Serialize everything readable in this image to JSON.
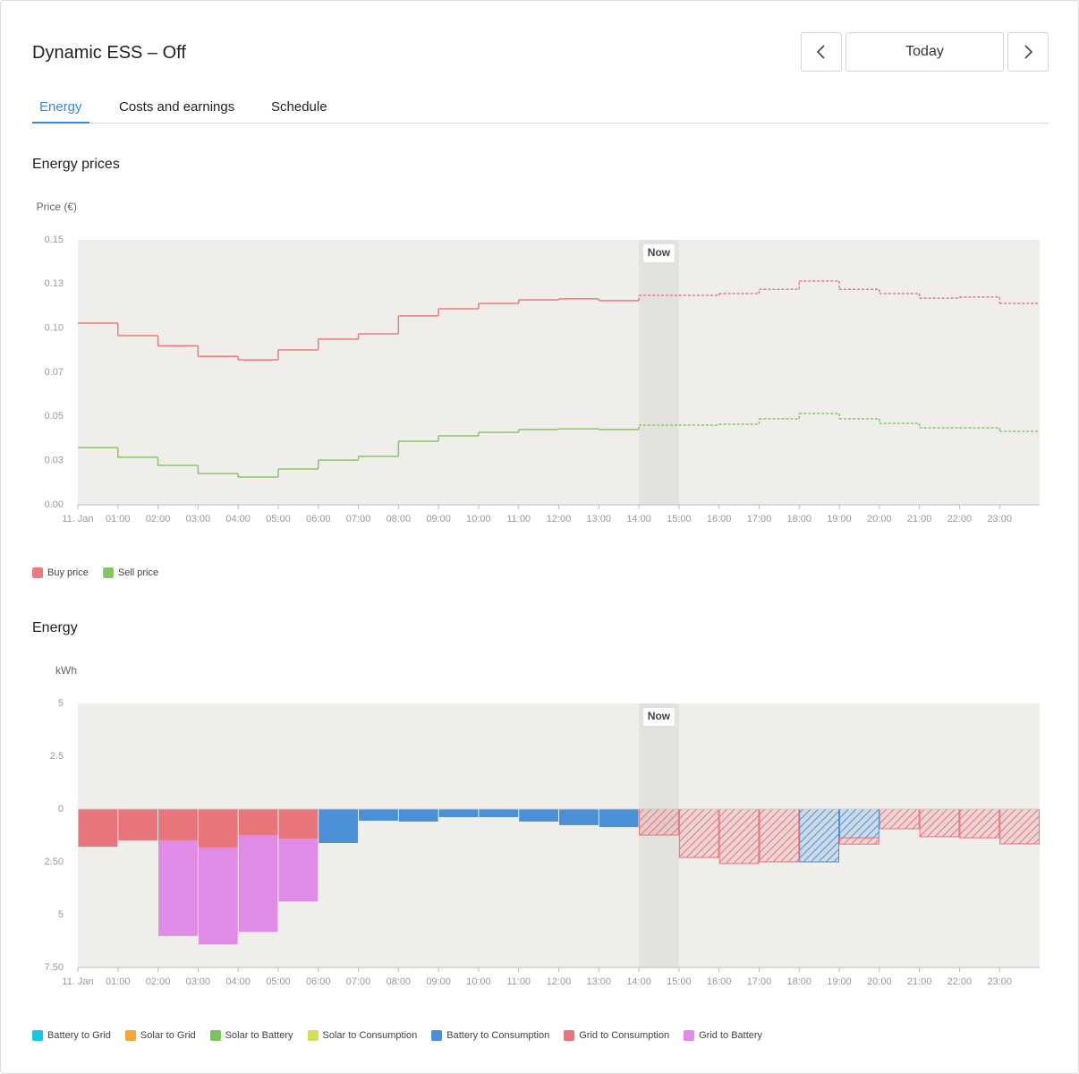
{
  "header": {
    "title": "Dynamic ESS – Off",
    "date_button": "Today"
  },
  "tabs": [
    "Energy",
    "Costs and earnings",
    "Schedule"
  ],
  "chart_data": [
    {
      "type": "line",
      "step": true,
      "title": "Energy prices",
      "y_label": "Price (€)",
      "categories": [
        "11. Jan",
        "01:00",
        "02:00",
        "03:00",
        "04:00",
        "05:00",
        "06:00",
        "07:00",
        "08:00",
        "09:00",
        "10:00",
        "11:00",
        "12:00",
        "13:00",
        "14:00",
        "15:00",
        "16:00",
        "17:00",
        "18:00",
        "19:00",
        "20:00",
        "21:00",
        "22:00",
        "23:00"
      ],
      "ylim": [
        0,
        0.15
      ],
      "yticks": [
        {
          "value": 0,
          "label": "0.00"
        },
        {
          "value": 0.025,
          "label": "0.03"
        },
        0.05,
        {
          "value": 0.075,
          "label": "0.07"
        },
        {
          "value": 0.1,
          "label": "0.10"
        },
        {
          "value": 0.125,
          "label": "0.13"
        },
        0.15
      ],
      "now": {
        "label": "Now",
        "index": 14
      },
      "series": [
        {
          "name": "Buy price",
          "color": "#ee7a7f",
          "values": [
            0.1029,
            0.0958,
            0.09,
            0.084,
            0.082,
            0.0877,
            0.0938,
            0.0968,
            0.107,
            0.111,
            0.114,
            0.116,
            0.1166,
            0.1156,
            0.1186,
            0.1186,
            0.1196,
            0.122,
            0.1267,
            0.122,
            0.1196,
            0.117,
            0.1176,
            0.114
          ]
        },
        {
          "name": "Sell price",
          "color": "#86c764",
          "values": [
            0.0324,
            0.0269,
            0.0223,
            0.0177,
            0.0157,
            0.0203,
            0.0253,
            0.0274,
            0.036,
            0.039,
            0.041,
            0.0426,
            0.043,
            0.0426,
            0.0451,
            0.0451,
            0.0456,
            0.0487,
            0.0517,
            0.0487,
            0.0461,
            0.0436,
            0.0436,
            0.0416
          ]
        }
      ]
    },
    {
      "type": "bar",
      "stacked": true,
      "title": "Energy",
      "y_label": "kWh",
      "categories": [
        "11. Jan",
        "01:00",
        "02:00",
        "03:00",
        "04:00",
        "05:00",
        "06:00",
        "07:00",
        "08:00",
        "09:00",
        "10:00",
        "11:00",
        "12:00",
        "13:00",
        "14:00",
        "15:00",
        "16:00",
        "17:00",
        "18:00",
        "19:00",
        "20:00",
        "21:00",
        "22:00",
        "23:00"
      ],
      "ylim": [
        -7.5,
        5
      ],
      "yticks": [
        {
          "value": -7.5,
          "label": "7.50"
        },
        {
          "value": -5,
          "label": "5"
        },
        {
          "value": -2.5,
          "label": "2.50"
        },
        0,
        2.5,
        5
      ],
      "now": {
        "label": "Now",
        "index": 14
      },
      "series": [
        {
          "name": "Battery to Grid",
          "color": "#1cc6e0",
          "values": [
            0,
            0,
            0,
            0,
            0,
            0,
            0,
            0,
            0,
            0,
            0,
            0,
            0,
            0,
            0,
            0,
            0,
            0,
            0,
            0,
            0,
            0,
            0,
            0
          ]
        },
        {
          "name": "Solar to Grid",
          "color": "#f4a63a",
          "values": [
            0,
            0,
            0,
            0,
            0,
            0,
            0,
            0,
            0,
            0,
            0,
            0,
            0,
            0,
            0,
            0,
            0,
            0,
            0,
            0,
            0,
            0,
            0,
            0
          ]
        },
        {
          "name": "Solar to Battery",
          "color": "#7cc35a",
          "values": [
            0,
            0,
            0,
            0,
            0,
            0,
            0,
            0,
            0,
            0,
            0,
            0,
            0,
            0,
            0,
            0,
            0,
            0,
            0,
            0,
            0,
            0,
            0,
            0
          ]
        },
        {
          "name": "Solar to Consumption",
          "color": "#d6de55",
          "values": [
            0,
            0,
            0,
            0,
            0,
            0,
            0,
            0,
            0,
            0,
            0,
            0,
            0,
            0,
            0,
            0,
            0,
            0,
            0,
            0,
            0,
            0,
            0,
            0
          ]
        },
        {
          "name": "Battery to Consumption",
          "color": "#4a90d6",
          "values": [
            0,
            0,
            0,
            0,
            0,
            0,
            -1.61,
            -0.55,
            -0.59,
            -0.38,
            -0.38,
            -0.59,
            -0.76,
            -0.85,
            0,
            0,
            0,
            0,
            -2.5,
            -1.36,
            0,
            0,
            0,
            0
          ]
        },
        {
          "name": "Grid to Consumption",
          "color": "#e8747c",
          "values": [
            -1.78,
            -1.48,
            -1.48,
            -1.82,
            -1.23,
            -1.4,
            0,
            0,
            0,
            0,
            0,
            0,
            0,
            0,
            -1.23,
            -2.29,
            -2.58,
            -2.5,
            0,
            -0.3,
            -0.93,
            -1.31,
            -1.36,
            -1.65
          ]
        },
        {
          "name": "Grid to Battery",
          "color": "#e08be6",
          "values": [
            0,
            0,
            -4.53,
            -4.58,
            -4.58,
            -2.97,
            0,
            0,
            0,
            0,
            0,
            0,
            0,
            0,
            0,
            0,
            0,
            0,
            0,
            0,
            0,
            0,
            0,
            0
          ]
        }
      ]
    }
  ]
}
